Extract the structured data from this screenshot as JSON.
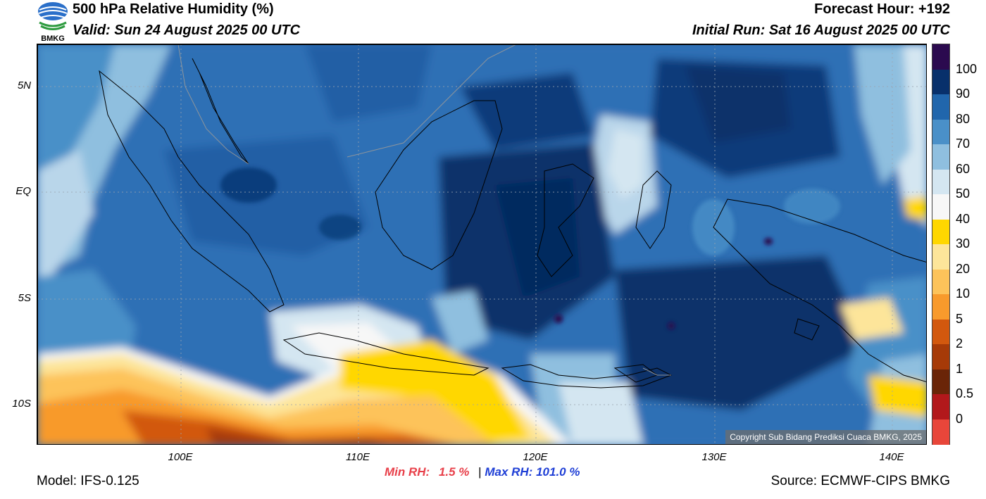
{
  "header": {
    "title": "500 hPa Relative Humidity (%)",
    "valid": "Valid: Sun 24 August 2025 00 UTC",
    "forecast_hour": "Forecast Hour: +192",
    "initial_run": "Initial Run: Sat 16 August 2025 00 UTC",
    "logo_text": "BMKG"
  },
  "map": {
    "lat_labels": [
      "5N",
      "EQ",
      "5S",
      "10S"
    ],
    "lon_labels": [
      "100E",
      "110E",
      "120E",
      "130E",
      "140E"
    ],
    "copyright": "Copyright Sub Bidang Prediksi Cuaca BMKG, 2025"
  },
  "colorbar": {
    "labels": [
      "100",
      "90",
      "80",
      "70",
      "60",
      "50",
      "40",
      "30",
      "20",
      "10",
      "5",
      "2",
      "1",
      "0.5",
      "0"
    ],
    "colors": [
      "#2b0a4f",
      "#08306b",
      "#2166ac",
      "#4a90c8",
      "#8fbfdf",
      "#d4e6f1",
      "#f7f7f7",
      "#ffd700",
      "#fde59a",
      "#fdc35a",
      "#f89a2c",
      "#d2580e",
      "#a63a08",
      "#6a2508",
      "#b2181b",
      "#e8463a"
    ]
  },
  "stats": {
    "min_label": "Min RH:",
    "min_value": "1.5 %",
    "separator": "|",
    "max_label": "Max RH:",
    "max_value": "101.0 %",
    "min_color": "#e8404a",
    "max_color": "#1f3fd6"
  },
  "footer": {
    "model": "Model: IFS-0.125",
    "source": "Source: ECMWF-CIPS BMKG"
  }
}
